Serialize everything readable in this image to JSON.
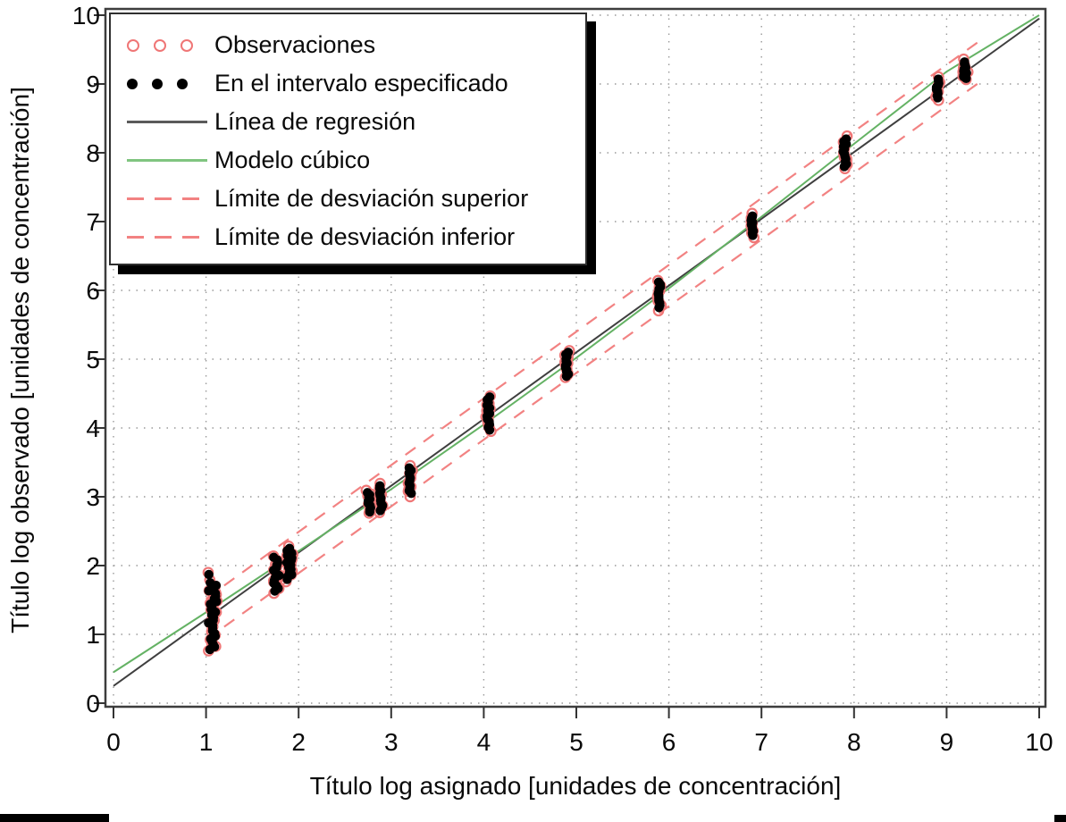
{
  "chart_data": {
    "type": "scatter",
    "xlabel": "Título log asignado [unidades de concentración]",
    "ylabel": "Título log observado [unidades de concentración]",
    "x_axis": {
      "range": [
        0,
        10
      ],
      "ticks": [
        "0",
        "1",
        "2",
        "3",
        "4",
        "5",
        "6",
        "7",
        "8",
        "9",
        "10"
      ]
    },
    "y_axis": {
      "range": [
        0,
        10
      ],
      "ticks": [
        "0",
        "1",
        "2",
        "3",
        "4",
        "5",
        "6",
        "7",
        "8",
        "9",
        "10"
      ]
    },
    "grid": "dotted",
    "legend_position": "top-left",
    "legend": [
      {
        "label": "Observaciones",
        "symbol": "open-circle",
        "color": "#ef7676"
      },
      {
        "label": "En el intervalo especificado",
        "symbol": "filled-circle",
        "color": "#000000"
      },
      {
        "label": "Línea de regresión",
        "symbol": "line",
        "color": "#5a5a5a"
      },
      {
        "label": "Modelo cúbico",
        "symbol": "line",
        "color": "#80c580"
      },
      {
        "label": "Límite de desviación superior",
        "symbol": "dashed-line",
        "color": "#f28282"
      },
      {
        "label": "Límite de desviación inferior",
        "symbol": "dashed-line",
        "color": "#f28282"
      }
    ],
    "regression_line": {
      "x": [
        0,
        10
      ],
      "y": [
        0.25,
        9.95
      ],
      "color": "#3f3f3f"
    },
    "cubic_model": {
      "color": "#64b264",
      "points": [
        [
          0,
          0.45
        ],
        [
          1,
          1.32
        ],
        [
          2,
          2.21
        ],
        [
          3,
          3.11
        ],
        [
          4,
          4.05
        ],
        [
          5,
          5.02
        ],
        [
          6,
          6.03
        ],
        [
          7,
          7.07
        ],
        [
          8,
          8.13
        ],
        [
          9,
          9.18
        ],
        [
          10,
          10.0
        ]
      ]
    },
    "deviation_limits": {
      "offset": 0.3,
      "x_range": [
        1.0,
        9.35
      ],
      "color": "#f28282"
    },
    "clusters": [
      {
        "x": 1.07,
        "y_min": 0.78,
        "y_max": 1.75,
        "n": 26
      },
      {
        "x": 1.76,
        "y_min": 1.63,
        "y_max": 2.12,
        "n": 14
      },
      {
        "x": 1.9,
        "y_min": 1.8,
        "y_max": 2.25,
        "n": 14
      },
      {
        "x": 2.76,
        "y_min": 2.78,
        "y_max": 3.06,
        "n": 10
      },
      {
        "x": 2.89,
        "y_min": 2.8,
        "y_max": 3.16,
        "n": 11
      },
      {
        "x": 3.2,
        "y_min": 3.05,
        "y_max": 3.42,
        "n": 11
      },
      {
        "x": 4.05,
        "y_min": 3.97,
        "y_max": 4.45,
        "n": 13
      },
      {
        "x": 4.9,
        "y_min": 4.75,
        "y_max": 5.1,
        "n": 12
      },
      {
        "x": 5.9,
        "y_min": 5.75,
        "y_max": 6.12,
        "n": 12
      },
      {
        "x": 6.9,
        "y_min": 6.8,
        "y_max": 7.08,
        "n": 10
      },
      {
        "x": 7.9,
        "y_min": 7.8,
        "y_max": 8.2,
        "n": 12
      },
      {
        "x": 8.9,
        "y_min": 8.8,
        "y_max": 9.07,
        "n": 10
      },
      {
        "x": 9.2,
        "y_min": 9.08,
        "y_max": 9.32,
        "n": 10
      }
    ],
    "outlier_point": {
      "x": 1.03,
      "y": 1.87
    },
    "colors": {
      "observation": "#ef7676",
      "in_interval": "#000000",
      "grid": "#999999",
      "frame": "#3d3d3d",
      "tick": "#333333",
      "tick_label": "#0a0a0a"
    }
  },
  "artifacts": {
    "bottom_left_bar_color": "#000000",
    "bottom_right_bar_color": "#000000"
  }
}
